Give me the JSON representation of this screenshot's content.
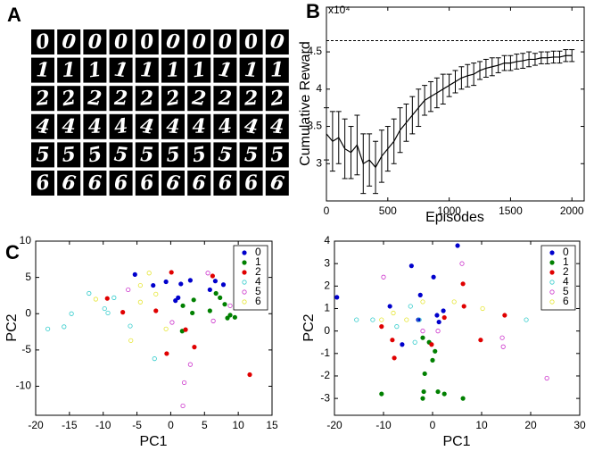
{
  "panel_labels": [
    "A",
    "B",
    "C"
  ],
  "digit_grid": {
    "rows": [
      "0",
      "1",
      "2",
      "4",
      "5",
      "6"
    ]
  },
  "chart_data": [
    {
      "type": "line",
      "y_label": "Cumulative Reward",
      "x_label": "Episodes",
      "y_multiplier": "x10⁴",
      "color": "#000000",
      "x": [
        0,
        50,
        100,
        150,
        200,
        250,
        300,
        350,
        400,
        450,
        500,
        550,
        600,
        650,
        700,
        750,
        800,
        850,
        900,
        950,
        1000,
        1050,
        1100,
        1150,
        1200,
        1250,
        1300,
        1350,
        1400,
        1450,
        1500,
        1550,
        1600,
        1650,
        1700,
        1750,
        1800,
        1850,
        1900,
        1950,
        2000
      ],
      "values": [
        3.4,
        3.3,
        3.35,
        3.2,
        3.15,
        3.25,
        3.0,
        3.05,
        2.95,
        3.1,
        3.2,
        3.3,
        3.45,
        3.55,
        3.65,
        3.75,
        3.85,
        3.9,
        3.95,
        4.0,
        4.05,
        4.1,
        4.15,
        4.18,
        4.2,
        4.25,
        4.28,
        4.3,
        4.32,
        4.35,
        4.35,
        4.37,
        4.38,
        4.4,
        4.4,
        4.42,
        4.42,
        4.43,
        4.43,
        4.45,
        4.45
      ],
      "errors": [
        0.35,
        0.4,
        0.35,
        0.4,
        0.35,
        0.4,
        0.4,
        0.35,
        0.35,
        0.35,
        0.3,
        0.3,
        0.3,
        0.25,
        0.25,
        0.25,
        0.2,
        0.2,
        0.2,
        0.2,
        0.15,
        0.15,
        0.15,
        0.15,
        0.15,
        0.12,
        0.12,
        0.12,
        0.1,
        0.1,
        0.1,
        0.1,
        0.1,
        0.1,
        0.08,
        0.08,
        0.08,
        0.08,
        0.08,
        0.08,
        0.08
      ],
      "reference_line": 4.65,
      "xlim": [
        0,
        2100
      ],
      "ylim": [
        2.5,
        5.1
      ],
      "xticks": [
        0,
        500,
        1000,
        1500,
        2000
      ],
      "yticks": [
        3,
        3.5,
        4,
        4.5
      ]
    },
    {
      "type": "scatter",
      "x_label": "PC1",
      "y_label": "PC2",
      "legend": "upper right",
      "xlim": [
        -20,
        15
      ],
      "ylim": [
        -14,
        10
      ],
      "xticks": [
        -20,
        -15,
        -10,
        -5,
        0,
        5,
        10,
        15
      ],
      "yticks": [
        -10,
        -5,
        0,
        5,
        10
      ],
      "series": [
        {
          "name": "0",
          "color": "#0000cc",
          "marker": "filled",
          "x": [
            -5.3,
            -0.7,
            1.5,
            2.9,
            1.1,
            0.7,
            5.8,
            6.6,
            7.8,
            -2.6
          ],
          "y": [
            5.4,
            4.4,
            4.1,
            4.6,
            2.2,
            1.8,
            3.3,
            4.5,
            4.0,
            3.9
          ]
        },
        {
          "name": "1",
          "color": "#008000",
          "marker": "filled",
          "x": [
            6.7,
            7.3,
            8.0,
            8.8,
            9.5,
            8.4,
            5.8,
            3.4,
            1.8,
            1.7,
            3.2
          ],
          "y": [
            2.8,
            2.2,
            1.3,
            -0.2,
            -0.5,
            -0.6,
            0.4,
            1.9,
            1.1,
            -2.4,
            0.1
          ]
        },
        {
          "name": "2",
          "color": "#e00000",
          "marker": "filled",
          "x": [
            -9.4,
            0.1,
            -7.1,
            2.2,
            -0.6,
            6.2,
            11.7,
            -2.2,
            3.5
          ],
          "y": [
            2.1,
            5.7,
            0.2,
            -2.2,
            -5.5,
            5.2,
            -8.4,
            0.4,
            -4.6
          ]
        },
        {
          "name": "4",
          "color": "#33cccc",
          "marker": "open",
          "x": [
            -18.2,
            -15.8,
            -14.7,
            -12.1,
            -8.4,
            -9.8,
            -6.0,
            -2.4,
            -9.3
          ],
          "y": [
            -2.1,
            -1.8,
            0,
            2.8,
            2.2,
            0.7,
            -1.7,
            -6.2,
            0.1
          ]
        },
        {
          "name": "5",
          "color": "#cc33cc",
          "marker": "open",
          "x": [
            2.0,
            5.5,
            8.8,
            6.3,
            2.9,
            1.8,
            -6.3,
            0.2
          ],
          "y": [
            -9.5,
            5.6,
            1.1,
            -1.0,
            -7.0,
            -12.7,
            3.3,
            -1.2
          ]
        },
        {
          "name": "6",
          "color": "#e6e633",
          "marker": "open",
          "x": [
            -3.2,
            -4.5,
            -5.9,
            -4.5,
            -0.7,
            -2.2,
            -11.1
          ],
          "y": [
            5.6,
            3.9,
            -3.7,
            1.6,
            -2.1,
            2.7,
            2.0
          ]
        }
      ]
    },
    {
      "type": "scatter",
      "x_label": "PC1",
      "y_label": "PC2",
      "legend": "upper right",
      "xlim": [
        -20,
        30
      ],
      "ylim": [
        -3.75,
        4
      ],
      "xticks": [
        -20,
        -10,
        0,
        10,
        20,
        30
      ],
      "yticks": [
        -3,
        -2,
        -1,
        0,
        1,
        2,
        3,
        4
      ],
      "series": [
        {
          "name": "0",
          "color": "#0000cc",
          "marker": "filled",
          "x": [
            5.1,
            -4.3,
            -8.7,
            -2.5,
            0.2,
            0.9,
            2.2,
            1.3,
            -2.9,
            -6.2,
            -19.5
          ],
          "y": [
            3.8,
            2.9,
            1.1,
            1.6,
            2.4,
            0.7,
            0.9,
            0.4,
            0.5,
            -0.6,
            1.5
          ]
        },
        {
          "name": "1",
          "color": "#008000",
          "marker": "filled",
          "x": [
            -10.4,
            -2.0,
            -0.7,
            0,
            -1.8,
            -2.0,
            1.1,
            2.4,
            -1.6,
            6.2,
            0.5
          ],
          "y": [
            -2.8,
            -0.3,
            -0.5,
            -1.3,
            -2.7,
            -3.0,
            -2.7,
            -2.8,
            -1.9,
            -3.0,
            -0.9
          ]
        },
        {
          "name": "2",
          "color": "#e00000",
          "marker": "filled",
          "x": [
            -8.2,
            -10.4,
            -7.8,
            6.2,
            6.4,
            14.7,
            9.8,
            2.4,
            -0.2
          ],
          "y": [
            -0.4,
            0.2,
            -1.2,
            2.1,
            1.1,
            0.7,
            -0.4,
            0.6,
            -0.6
          ]
        },
        {
          "name": "4",
          "color": "#33cccc",
          "marker": "open",
          "x": [
            -15.5,
            -12.2,
            -4.5,
            -2.7,
            19.1,
            -3.6,
            -7.3
          ],
          "y": [
            0.5,
            0.5,
            1.1,
            0.5,
            0.5,
            -0.5,
            0.2
          ]
        },
        {
          "name": "5",
          "color": "#cc33cc",
          "marker": "open",
          "x": [
            -10,
            6,
            14.2,
            14.4,
            23.3,
            -2,
            1.1
          ],
          "y": [
            2.4,
            3,
            -0.3,
            -0.7,
            -2.1,
            0,
            0
          ]
        },
        {
          "name": "6",
          "color": "#e6e633",
          "marker": "open",
          "x": [
            -10.4,
            -8,
            -2,
            4.4,
            10.2,
            -5.3
          ],
          "y": [
            0.5,
            0.8,
            1.3,
            1.3,
            1.0,
            0.5
          ]
        }
      ]
    }
  ]
}
